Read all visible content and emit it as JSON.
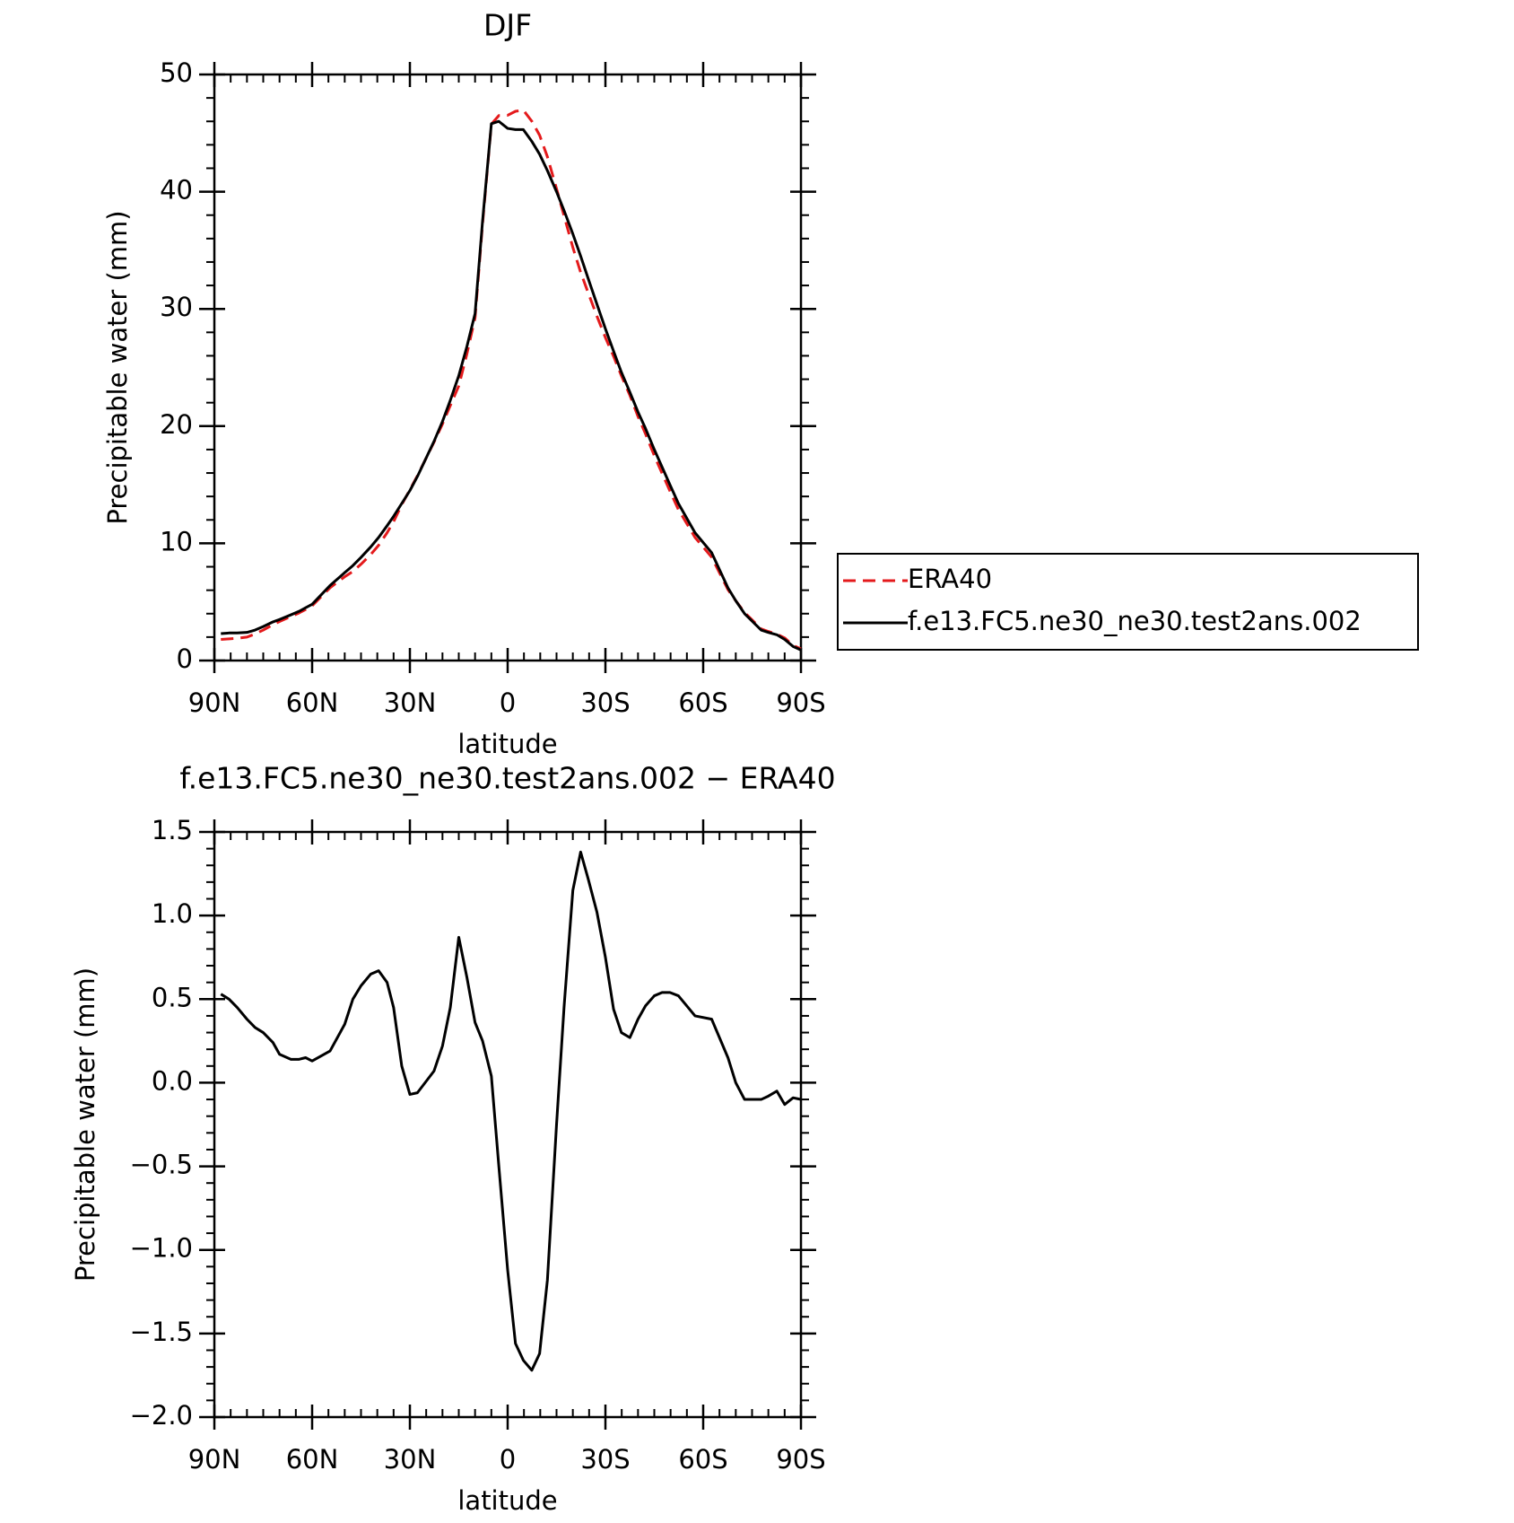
{
  "chart_data": [
    {
      "type": "line",
      "title": "DJF",
      "xlabel": "latitude",
      "ylabel": "Precipitable water (mm)",
      "x": [
        88,
        85.5,
        83,
        80,
        77.5,
        75,
        72,
        70,
        66.5,
        64,
        62,
        60,
        54.5,
        50,
        47.5,
        45,
        42,
        39.6,
        37,
        35,
        32.5,
        30,
        27.7,
        22.6,
        20,
        17.6,
        15,
        12.5,
        10,
        7.7,
        5,
        2.7,
        0,
        -2.4,
        -4.8,
        -7.4,
        -9.8,
        -12.2,
        -15,
        -17.3,
        -20,
        -22.4,
        -24.7,
        -27.4,
        -30,
        -32.5,
        -34.9,
        -37.5,
        -40,
        -42.3,
        -45,
        -47.4,
        -49.8,
        -52.4,
        -57.5,
        -62.6,
        -67.6,
        -70,
        -72.7,
        -77.8,
        -80,
        -82.6,
        -85,
        -87.6,
        -90
      ],
      "series": [
        {
          "name": "ERA40",
          "color": "#e41a1c",
          "dashed": true,
          "values": [
            1.8,
            1.85,
            1.9,
            2.0,
            2.27,
            2.6,
            3.06,
            3.33,
            3.76,
            4.06,
            4.35,
            4.67,
            6.21,
            7.15,
            7.6,
            8.22,
            9.05,
            9.83,
            10.9,
            11.85,
            13.3,
            14.57,
            15.76,
            18.63,
            20.18,
            21.75,
            23.43,
            26.17,
            29.24,
            37.25,
            45.76,
            46.5,
            46.52,
            46.86,
            46.96,
            46.02,
            44.82,
            42.98,
            40.25,
            37.95,
            35.25,
            33.12,
            31.38,
            29.38,
            27.55,
            25.96,
            24.3,
            22.63,
            20.82,
            19.34,
            17.48,
            15.96,
            14.46,
            12.88,
            10.5,
            8.82,
            6.05,
            5.1,
            4.1,
            2.7,
            2.48,
            2.25,
            1.93,
            1.29,
            1.0
          ]
        },
        {
          "name": "f.e13.FC5.ne30_ne30.test2ans.002",
          "color": "#000000",
          "dashed": false,
          "values": [
            2.3,
            2.35,
            2.35,
            2.4,
            2.6,
            2.9,
            3.3,
            3.5,
            3.9,
            4.2,
            4.5,
            4.8,
            6.4,
            7.5,
            8.1,
            8.8,
            9.7,
            10.5,
            11.5,
            12.3,
            13.4,
            14.5,
            15.7,
            18.7,
            20.4,
            22.2,
            24.3,
            26.8,
            29.6,
            37.5,
            45.8,
            46.0,
            45.4,
            45.3,
            45.3,
            44.3,
            43.2,
            41.8,
            40.0,
            38.4,
            36.4,
            34.5,
            32.6,
            30.4,
            28.3,
            26.4,
            24.6,
            22.9,
            21.2,
            19.8,
            18.0,
            16.5,
            15.0,
            13.4,
            10.9,
            9.2,
            6.2,
            5.1,
            4.0,
            2.6,
            2.4,
            2.2,
            1.8,
            1.2,
            0.9
          ]
        }
      ],
      "xlim": [
        90,
        -90
      ],
      "xticks": [
        {
          "value": 90,
          "label": "90N"
        },
        {
          "value": 60,
          "label": "60N"
        },
        {
          "value": 30,
          "label": "30N"
        },
        0,
        {
          "value": -30,
          "label": "30S"
        },
        {
          "value": -60,
          "label": "60S"
        },
        {
          "value": -90,
          "label": "90S"
        }
      ],
      "ylim": [
        0,
        50
      ],
      "yticks": [
        0,
        10,
        20,
        30,
        40,
        50
      ],
      "legend": "right"
    },
    {
      "type": "line",
      "title": "f.e13.FC5.ne30_ne30.test2ans.002 − ERA40",
      "xlabel": "latitude",
      "ylabel": "Precipitable water (mm)",
      "x": [
        88,
        85.5,
        83,
        80,
        77.5,
        75,
        72,
        70,
        66.5,
        64,
        62,
        60,
        54.5,
        50,
        47.5,
        45,
        42,
        39.6,
        37,
        35,
        32.5,
        30,
        27.7,
        22.6,
        20,
        17.6,
        15,
        12.5,
        10,
        7.7,
        5,
        2.7,
        0,
        -2.4,
        -4.8,
        -7.4,
        -9.8,
        -12.2,
        -15,
        -17.3,
        -20,
        -22.4,
        -24.7,
        -27.4,
        -30,
        -32.5,
        -34.9,
        -37.5,
        -40,
        -42.3,
        -45,
        -47.4,
        -49.8,
        -52.4,
        -57.5,
        -62.6,
        -67.6,
        -70,
        -72.7,
        -77.8,
        -80,
        -82.6,
        -85,
        -87.6,
        -90
      ],
      "series": [
        {
          "color": "#000000",
          "dashed": false,
          "values": [
            0.53,
            0.5,
            0.45,
            0.38,
            0.33,
            0.3,
            0.24,
            0.17,
            0.14,
            0.14,
            0.15,
            0.13,
            0.19,
            0.35,
            0.5,
            0.58,
            0.65,
            0.67,
            0.6,
            0.45,
            0.1,
            -0.07,
            -0.06,
            0.07,
            0.22,
            0.45,
            0.87,
            0.63,
            0.36,
            0.25,
            0.04,
            -0.5,
            -1.12,
            -1.56,
            -1.66,
            -1.72,
            -1.62,
            -1.18,
            -0.25,
            0.45,
            1.15,
            1.38,
            1.22,
            1.02,
            0.75,
            0.44,
            0.3,
            0.27,
            0.38,
            0.46,
            0.52,
            0.54,
            0.54,
            0.52,
            0.4,
            0.38,
            0.15,
            0.0,
            -0.1,
            -0.1,
            -0.08,
            -0.05,
            -0.13,
            -0.09,
            -0.1
          ]
        }
      ],
      "xlim": [
        90,
        -90
      ],
      "xticks": [
        {
          "value": 90,
          "label": "90N"
        },
        {
          "value": 60,
          "label": "60N"
        },
        {
          "value": 30,
          "label": "30N"
        },
        0,
        {
          "value": -30,
          "label": "30S"
        },
        {
          "value": -60,
          "label": "60S"
        },
        {
          "value": -90,
          "label": "90S"
        }
      ],
      "ylim": [
        -2,
        1.5
      ],
      "yticks": [
        {
          "value": -2,
          "label": "−2.0"
        },
        {
          "value": -1.5,
          "label": "−1.5"
        },
        {
          "value": -1,
          "label": "−1.0"
        },
        {
          "value": -0.5,
          "label": "−0.5"
        },
        {
          "value": 0,
          "label": "0.0"
        },
        0.5,
        {
          "value": 1,
          "label": "1.0"
        },
        1.5
      ]
    }
  ]
}
